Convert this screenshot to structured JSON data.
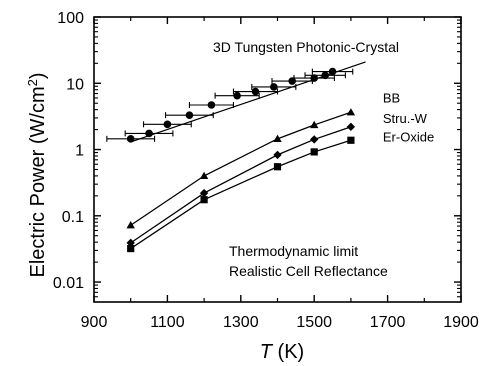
{
  "chart_data": {
    "type": "line",
    "title": "",
    "xlabel_italic": "T",
    "xlabel_unit": " (K)",
    "ylabel_main": "Electric Power (W/cm",
    "ylabel_sup": "2",
    "ylabel_close": ")",
    "xlim": [
      900,
      1900
    ],
    "ylim": [
      0.005,
      100
    ],
    "yscale": "log",
    "x_ticks": [
      900,
      1100,
      1300,
      1500,
      1700,
      1900
    ],
    "x_tick_labels": [
      "900",
      "1100",
      "1300",
      "1500",
      "1700",
      "1900"
    ],
    "y_ticks": [
      0.01,
      0.1,
      1,
      10,
      100
    ],
    "y_tick_labels": [
      "0.01",
      "0.1",
      "1",
      "10",
      "100"
    ],
    "annotations": {
      "photonic": "3D Tungsten Photonic-Crystal",
      "thermo_line1": "Thermodynamic limit",
      "thermo_line2": "Realistic Cell Reflectance"
    },
    "series": [
      {
        "name": "BB",
        "marker": "triangle",
        "x": [
          1000,
          1200,
          1400,
          1500,
          1600
        ],
        "y": [
          0.072,
          0.4,
          1.45,
          2.35,
          3.65
        ]
      },
      {
        "name": "Stru.-W",
        "marker": "diamond",
        "x": [
          1000,
          1200,
          1400,
          1500,
          1600
        ],
        "y": [
          0.039,
          0.22,
          0.83,
          1.42,
          2.2
        ]
      },
      {
        "name": "Er-Oxide",
        "marker": "square",
        "x": [
          1000,
          1200,
          1400,
          1500,
          1600
        ],
        "y": [
          0.032,
          0.175,
          0.55,
          0.92,
          1.38
        ]
      },
      {
        "name": "",
        "marker": "circle",
        "x": [
          1000,
          1050,
          1100,
          1160,
          1220,
          1290,
          1340,
          1390,
          1440,
          1500,
          1530,
          1550
        ],
        "y": [
          1.45,
          1.75,
          2.4,
          3.3,
          4.7,
          6.5,
          7.5,
          8.8,
          10.8,
          12.0,
          13.2,
          15.0
        ],
        "xerr": [
          65,
          65,
          65,
          65,
          60,
          60,
          60,
          60,
          55,
          55,
          55,
          55
        ]
      }
    ],
    "fit_line": {
      "x": [
        1000,
        1640
      ],
      "y": [
        1.3,
        21
      ]
    }
  }
}
